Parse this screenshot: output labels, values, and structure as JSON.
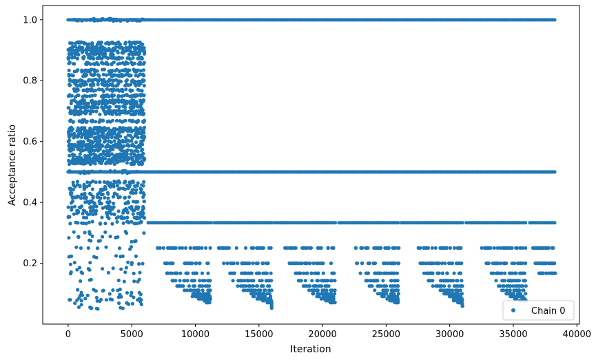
{
  "chart_data": {
    "type": "scatter",
    "xlabel": "Iteration",
    "ylabel": "Acceptance ratio",
    "xlim": [
      -2000,
      40200
    ],
    "ylim": [
      0.0,
      1.047
    ],
    "x_ticks": [
      0,
      5000,
      10000,
      15000,
      20000,
      25000,
      30000,
      35000,
      40000
    ],
    "y_ticks": [
      0.2,
      0.4,
      0.6,
      0.8,
      1.0
    ],
    "grid": false,
    "legend": {
      "position": "bottom-right",
      "entries": [
        "Chain 0"
      ]
    },
    "series": [
      {
        "name": "Chain 0",
        "color": "#1f77b4",
        "marker": "circle",
        "x_range": [
          0,
          38300
        ],
        "burn_in_end": 6000,
        "burn_in_levels": [
          1.0,
          0.923,
          0.909,
          0.9,
          0.889,
          0.875,
          0.857,
          0.833,
          0.818,
          0.8,
          0.786,
          0.769,
          0.75,
          0.733,
          0.727,
          0.714,
          0.7,
          0.692,
          0.667,
          0.643,
          0.636,
          0.625,
          0.615,
          0.6,
          0.588,
          0.583,
          0.571,
          0.556,
          0.545,
          0.538,
          0.529,
          0.5,
          0.467,
          0.455,
          0.444,
          0.429,
          0.417,
          0.4,
          0.385,
          0.375,
          0.364,
          0.35,
          0.333,
          0.3,
          0.286,
          0.273,
          0.25,
          0.222,
          0.2,
          0.182,
          0.167,
          0.143,
          0.111,
          0.1,
          0.091,
          0.083,
          0.077,
          0.067,
          0.053
        ],
        "continuous_levels": [
          {
            "y": 1.0,
            "x_range": [
              0,
              38300
            ]
          },
          {
            "y": 0.5,
            "x_range": [
              0,
              38300
            ]
          },
          {
            "y": 0.333,
            "x_ranges": [
              [
                6300,
                11300
              ],
              [
                11500,
                16000
              ],
              [
                16200,
                21000
              ],
              [
                21300,
                26000
              ],
              [
                26200,
                31000
              ],
              [
                31300,
                36000
              ],
              [
                36300,
                38300
              ]
            ]
          }
        ],
        "clusters": [
          {
            "x_range": [
              7000,
              11200
            ],
            "levels": [
              0.25,
              0.2,
              0.167,
              0.143,
              0.125,
              0.111,
              0.1,
              0.091,
              0.083,
              0.077,
              0.071
            ]
          },
          {
            "x_range": [
              11800,
              16000
            ],
            "levels": [
              0.25,
              0.2,
              0.167,
              0.143,
              0.125,
              0.111,
              0.1,
              0.091,
              0.083,
              0.077,
              0.071,
              0.067,
              0.059,
              0.053
            ]
          },
          {
            "x_range": [
              17000,
              21000
            ],
            "levels": [
              0.25,
              0.2,
              0.167,
              0.143,
              0.125,
              0.111,
              0.1,
              0.091,
              0.083,
              0.077,
              0.071
            ]
          },
          {
            "x_range": [
              22300,
              26000
            ],
            "levels": [
              0.25,
              0.2,
              0.167,
              0.143,
              0.125,
              0.111,
              0.1,
              0.091,
              0.083,
              0.077,
              0.071
            ]
          },
          {
            "x_range": [
              27200,
              31000
            ],
            "levels": [
              0.25,
              0.2,
              0.167,
              0.143,
              0.125,
              0.111,
              0.1,
              0.091,
              0.083,
              0.077,
              0.071,
              0.067,
              0.059
            ]
          },
          {
            "x_range": [
              32500,
              36000
            ],
            "levels": [
              0.25,
              0.2,
              0.167,
              0.143,
              0.125,
              0.111,
              0.1,
              0.091,
              0.083,
              0.077
            ]
          },
          {
            "x_range": [
              36500,
              38300
            ],
            "levels": [
              0.25,
              0.2,
              0.167
            ]
          }
        ]
      }
    ]
  }
}
